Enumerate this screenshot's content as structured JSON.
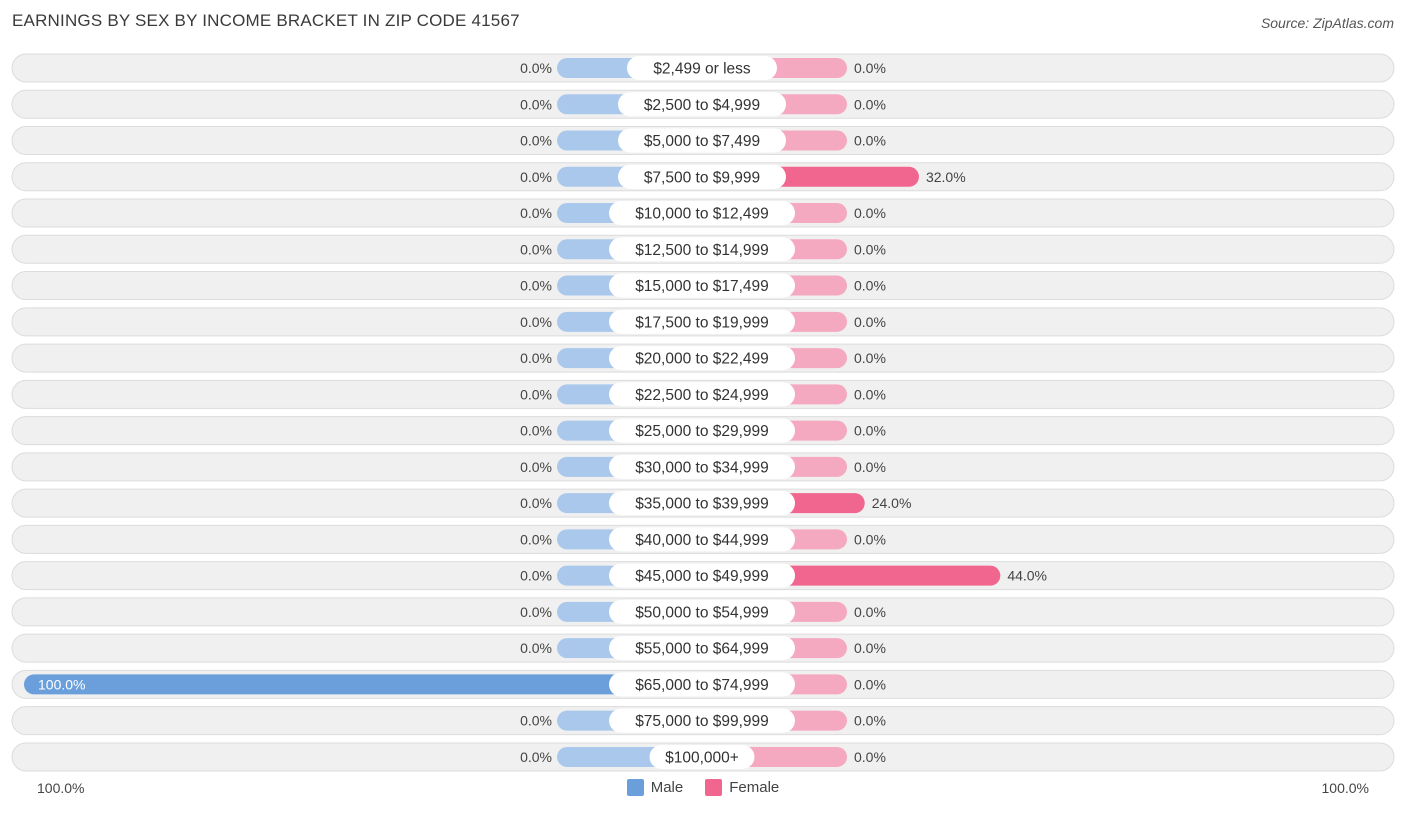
{
  "title": "EARNINGS BY SEX BY INCOME BRACKET IN ZIP CODE 41567",
  "source": "Source: ZipAtlas.com",
  "axis": {
    "left_label": "100.0%",
    "right_label": "100.0%"
  },
  "legend": {
    "male_label": "Male",
    "female_label": "Female"
  },
  "colors": {
    "male_light": "#aac8ec",
    "male_strong": "#6a9fdb",
    "female_light": "#f5a9c1",
    "female_strong": "#f0668f",
    "row_bg": "#f0f0f0",
    "row_border": "#dcdcdc"
  },
  "chart_data": {
    "type": "bar",
    "orientation": "horizontal-diverging",
    "categories": [
      "$2,499 or less",
      "$2,500 to $4,999",
      "$5,000 to $7,499",
      "$7,500 to $9,999",
      "$10,000 to $12,499",
      "$12,500 to $14,999",
      "$15,000 to $17,499",
      "$17,500 to $19,999",
      "$20,000 to $22,499",
      "$22,500 to $24,999",
      "$25,000 to $29,999",
      "$30,000 to $34,999",
      "$35,000 to $39,999",
      "$40,000 to $44,999",
      "$45,000 to $49,999",
      "$50,000 to $54,999",
      "$55,000 to $64,999",
      "$65,000 to $74,999",
      "$75,000 to $99,999",
      "$100,000+"
    ],
    "series": [
      {
        "name": "Male",
        "values": [
          0,
          0,
          0,
          0,
          0,
          0,
          0,
          0,
          0,
          0,
          0,
          0,
          0,
          0,
          0,
          0,
          0,
          100,
          0,
          0
        ]
      },
      {
        "name": "Female",
        "values": [
          0,
          0,
          0,
          32,
          0,
          0,
          0,
          0,
          0,
          0,
          0,
          0,
          24,
          0,
          44,
          0,
          0,
          0,
          0,
          0
        ]
      }
    ],
    "value_labels": {
      "Male": [
        "0.0%",
        "0.0%",
        "0.0%",
        "0.0%",
        "0.0%",
        "0.0%",
        "0.0%",
        "0.0%",
        "0.0%",
        "0.0%",
        "0.0%",
        "0.0%",
        "0.0%",
        "0.0%",
        "0.0%",
        "0.0%",
        "0.0%",
        "100.0%",
        "0.0%",
        "0.0%"
      ],
      "Female": [
        "0.0%",
        "0.0%",
        "0.0%",
        "32.0%",
        "0.0%",
        "0.0%",
        "0.0%",
        "0.0%",
        "0.0%",
        "0.0%",
        "0.0%",
        "0.0%",
        "24.0%",
        "0.0%",
        "44.0%",
        "0.0%",
        "0.0%",
        "0.0%",
        "0.0%",
        "0.0%"
      ]
    },
    "xlim": [
      -100,
      100
    ],
    "unit": "%",
    "grid": false,
    "legend_position": "bottom-center"
  }
}
